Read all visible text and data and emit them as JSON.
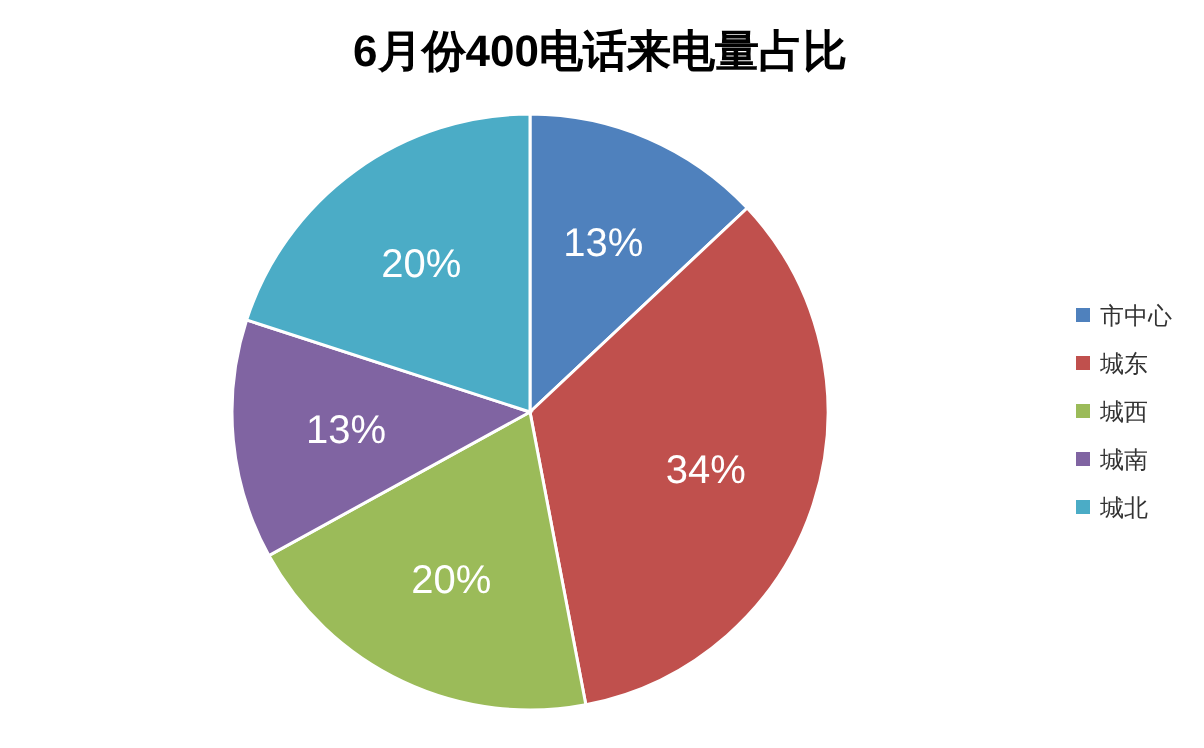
{
  "chart_data": {
    "type": "pie",
    "title": "6月份400电话来电量占比",
    "categories": [
      "市中心",
      "城东",
      "城西",
      "城南",
      "城北"
    ],
    "values": [
      13,
      34,
      20,
      13,
      20
    ],
    "colors": [
      "#4f81bd",
      "#c0504d",
      "#9bbb59",
      "#8064a2",
      "#4bacc6"
    ],
    "value_labels": [
      "13%",
      "34%",
      "20%",
      "13%",
      "20%"
    ],
    "legend": "right"
  }
}
